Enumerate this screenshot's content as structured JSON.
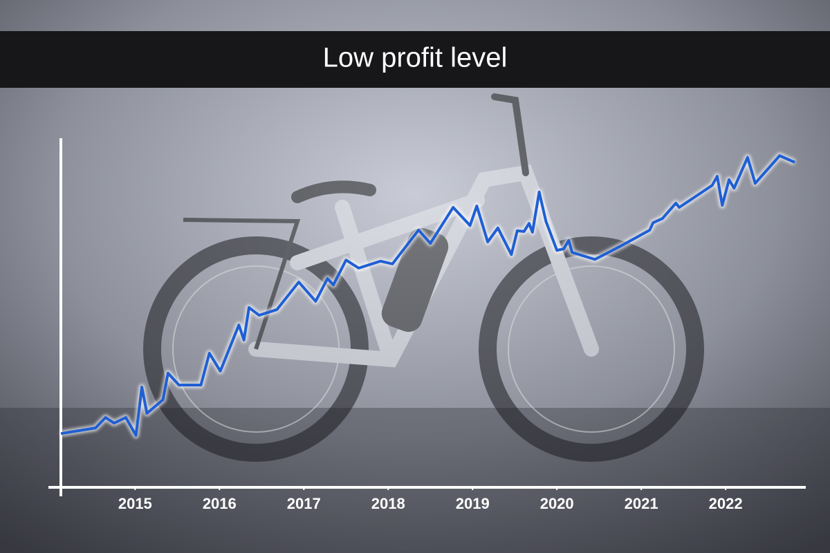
{
  "chart_data": {
    "type": "line",
    "title": "Low profit level",
    "x": [
      2014.12,
      2014.53,
      2014.65,
      2014.75,
      2014.89,
      2015.01,
      2015.08,
      2015.14,
      2015.33,
      2015.39,
      2015.52,
      2015.78,
      2015.88,
      2016.01,
      2016.23,
      2016.29,
      2016.35,
      2016.47,
      2016.68,
      2016.94,
      2017.14,
      2017.28,
      2017.35,
      2017.5,
      2017.65,
      2017.91,
      2018.05,
      2018.36,
      2018.5,
      2018.77,
      2018.97,
      2019.05,
      2019.18,
      2019.3,
      2019.46,
      2019.53,
      2019.61,
      2019.67,
      2019.71,
      2019.79,
      2019.87,
      2020.0,
      2020.08,
      2020.14,
      2020.18,
      2020.45,
      2020.77,
      2021.1,
      2021.14,
      2021.25,
      2021.41,
      2021.45,
      2021.84,
      2021.9,
      2021.96,
      2022.04,
      2022.1,
      2022.26,
      2022.35,
      2022.64,
      2022.82
    ],
    "series": [
      {
        "color": "#1f5fd4",
        "values": [
          15.4,
          17.0,
          20.0,
          18.4,
          20.0,
          14.9,
          28.7,
          21.2,
          25.1,
          32.7,
          29.3,
          29.3,
          38.4,
          33.3,
          46.5,
          42.2,
          51.5,
          49.3,
          50.9,
          58.8,
          53.3,
          59.8,
          58.0,
          65.1,
          62.8,
          64.8,
          64.0,
          73.7,
          69.9,
          80.2,
          75.0,
          80.6,
          70.3,
          74.3,
          66.7,
          73.5,
          73.3,
          75.6,
          73.1,
          84.6,
          76.2,
          67.9,
          68.3,
          70.7,
          67.3,
          65.3,
          69.3,
          73.7,
          75.8,
          77.0,
          81.4,
          80.2,
          86.5,
          89.1,
          80.8,
          88.1,
          85.7,
          94.5,
          87.1,
          95.0,
          93.1
        ]
      }
    ],
    "xlim": [
      2014.12,
      2022.95
    ],
    "xticks": [
      2015,
      2016,
      2017,
      2018,
      2019,
      2020,
      2021,
      2022
    ],
    "ylim": [
      0,
      100
    ]
  }
}
